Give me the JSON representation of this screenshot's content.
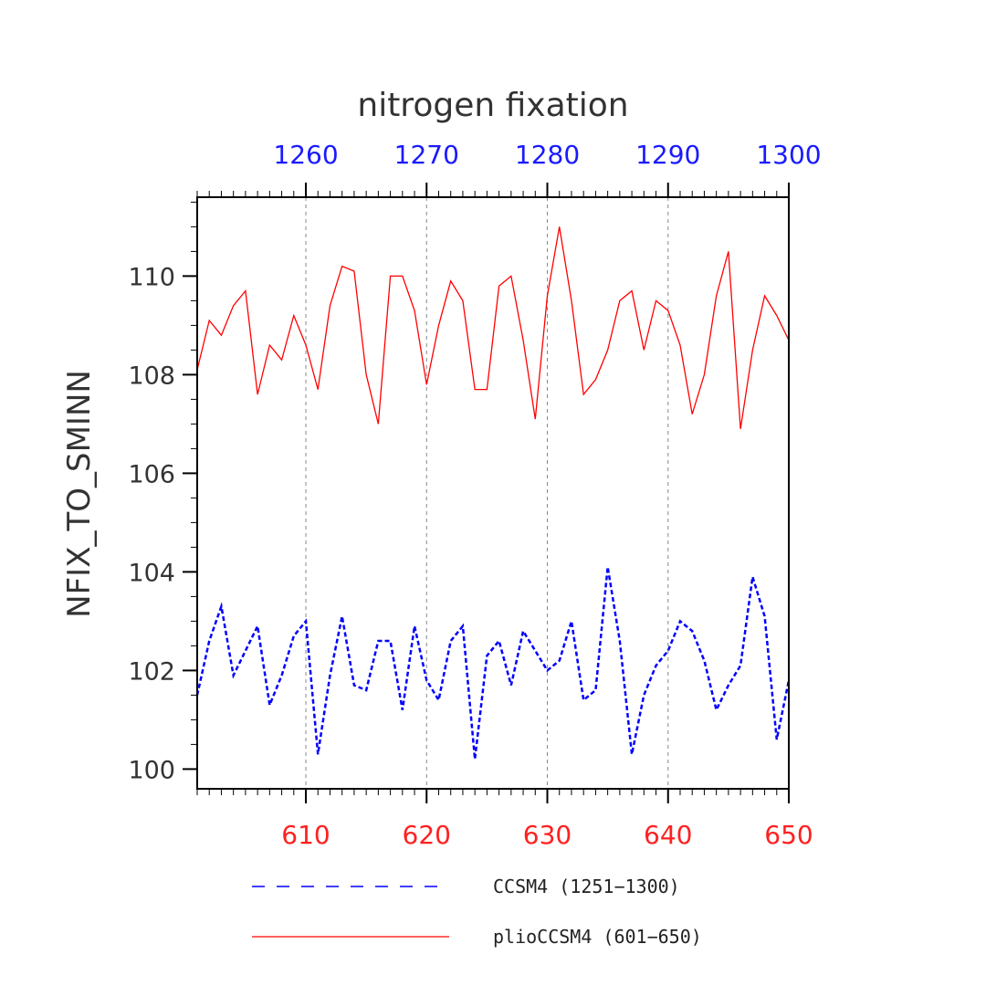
{
  "chart_data": {
    "type": "line",
    "title": "nitrogen fixation",
    "ylabel": "NFIX_TO_SMINN",
    "ylim": [
      99.6,
      111.6
    ],
    "y_ticks": [
      "100",
      "102",
      "104",
      "106",
      "108",
      "110"
    ],
    "x_bottom": {
      "range": [
        601,
        650
      ],
      "ticks": [
        "610",
        "620",
        "630",
        "640",
        "650"
      ],
      "color": "#ff2020"
    },
    "x_top": {
      "range": [
        1251,
        1300
      ],
      "ticks": [
        "1260",
        "1270",
        "1280",
        "1290",
        "1300"
      ],
      "color": "#1a1aff"
    },
    "grid": "vertical dashed at major ticks",
    "series": [
      {
        "name": "CCSM4 (1251−1300)",
        "color": "#0000ff",
        "style": "dashed",
        "axis": "top",
        "x_start": 1251,
        "values": [
          101.5,
          102.6,
          103.3,
          101.9,
          102.4,
          102.9,
          101.3,
          101.9,
          102.7,
          103.0,
          100.3,
          101.9,
          103.1,
          101.7,
          101.6,
          102.6,
          102.6,
          101.2,
          102.9,
          101.8,
          101.4,
          102.6,
          102.9,
          100.2,
          102.3,
          102.6,
          101.7,
          102.8,
          102.4,
          102.0,
          102.2,
          103.0,
          101.4,
          101.6,
          104.1,
          102.6,
          100.3,
          101.5,
          102.1,
          102.4,
          103.0,
          102.8,
          102.2,
          101.2,
          101.7,
          102.1,
          103.9,
          103.1,
          100.6,
          101.8
        ]
      },
      {
        "name": "plioCCSM4 (601−650)",
        "color": "#ff0000",
        "style": "solid",
        "axis": "bottom",
        "x_start": 601,
        "values": [
          108.1,
          109.1,
          108.8,
          109.4,
          109.7,
          107.6,
          108.6,
          108.3,
          109.2,
          108.6,
          107.7,
          109.4,
          110.2,
          110.1,
          108.0,
          107.0,
          110.0,
          110.0,
          109.3,
          107.8,
          109.0,
          109.9,
          109.5,
          107.7,
          107.7,
          109.8,
          110.0,
          108.7,
          107.1,
          109.6,
          111.0,
          109.5,
          107.6,
          107.9,
          108.5,
          109.5,
          109.7,
          108.5,
          109.5,
          109.3,
          108.6,
          107.2,
          108.0,
          109.6,
          110.5,
          106.9,
          108.5,
          109.6,
          109.2,
          108.7
        ]
      }
    ]
  },
  "legend": {
    "items": [
      {
        "label": "CCSM4 (1251−1300)",
        "color": "#0000ff",
        "style": "dashed"
      },
      {
        "label": "plioCCSM4 (601−650)",
        "color": "#ff0000",
        "style": "solid"
      }
    ]
  }
}
